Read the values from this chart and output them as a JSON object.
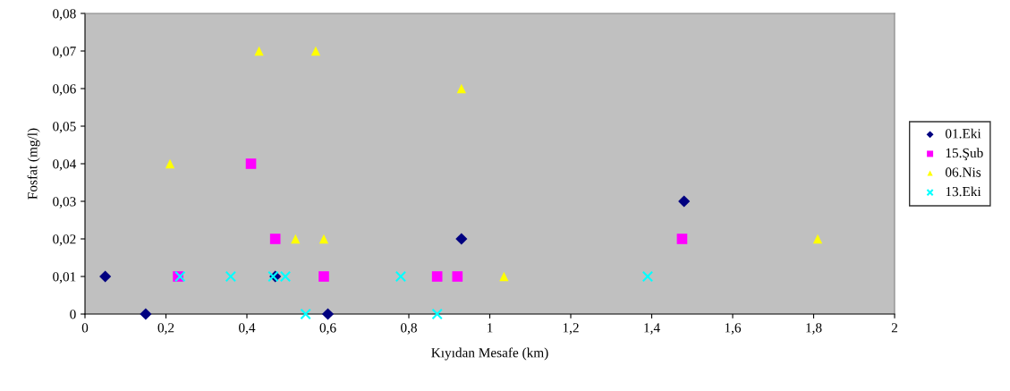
{
  "chart_data": {
    "type": "scatter",
    "xlabel": "Kıyıdan Mesafe (km)",
    "ylabel": "Fosfat (mg/l)",
    "xlim": [
      0,
      2
    ],
    "ylim": [
      0,
      0.08
    ],
    "xticks": [
      0,
      {
        "value": 0.2,
        "label": "0,2"
      },
      {
        "value": 0.4,
        "label": "0,4"
      },
      {
        "value": 0.6,
        "label": "0,6"
      },
      {
        "value": 0.8,
        "label": "0,8"
      },
      1,
      {
        "value": 1.2,
        "label": "1,2"
      },
      {
        "value": 1.4,
        "label": "1,4"
      },
      {
        "value": 1.6,
        "label": "1,6"
      },
      {
        "value": 1.8,
        "label": "1,8"
      },
      2
    ],
    "yticks": [
      0,
      {
        "value": 0.01,
        "label": "0,01"
      },
      {
        "value": 0.02,
        "label": "0,02"
      },
      {
        "value": 0.03,
        "label": "0,03"
      },
      {
        "value": 0.04,
        "label": "0,04"
      },
      {
        "value": 0.05,
        "label": "0,05"
      },
      {
        "value": 0.06,
        "label": "0,06"
      },
      {
        "value": 0.07,
        "label": "0,07"
      },
      {
        "value": 0.08,
        "label": "0,08"
      }
    ],
    "grid": false,
    "legend": "right",
    "series": [
      {
        "name": "01.Eki",
        "color": "#000080",
        "marker": "diamond",
        "x": [
          0.05,
          0.15,
          0.47,
          0.6,
          0.93,
          1.48
        ],
        "values": [
          0.01,
          0,
          0.01,
          0,
          0.02,
          0.03
        ]
      },
      {
        "name": "15.Şub",
        "color": "#ff00ff",
        "marker": "square",
        "x": [
          0.23,
          0.41,
          0.47,
          0.59,
          0.87,
          0.92,
          1.475
        ],
        "values": [
          0.01,
          0.04,
          0.02,
          0.01,
          0.01,
          0.01,
          0.02
        ]
      },
      {
        "name": "06.Nis",
        "color": "#ffff00",
        "marker": "triangle",
        "x": [
          0.21,
          0.43,
          0.57,
          0.93,
          0.52,
          0.59,
          1.035,
          1.81
        ],
        "values": [
          0.04,
          0.07,
          0.07,
          0.06,
          0.02,
          0.02,
          0.01,
          0.02
        ]
      },
      {
        "name": "13.Eki",
        "color": "#00ffff",
        "marker": "cross",
        "x": [
          0.235,
          0.36,
          0.465,
          0.495,
          0.545,
          0.78,
          0.87,
          1.39
        ],
        "values": [
          0.01,
          0.01,
          0.01,
          0.01,
          0,
          0.01,
          0,
          0.01
        ]
      }
    ]
  }
}
